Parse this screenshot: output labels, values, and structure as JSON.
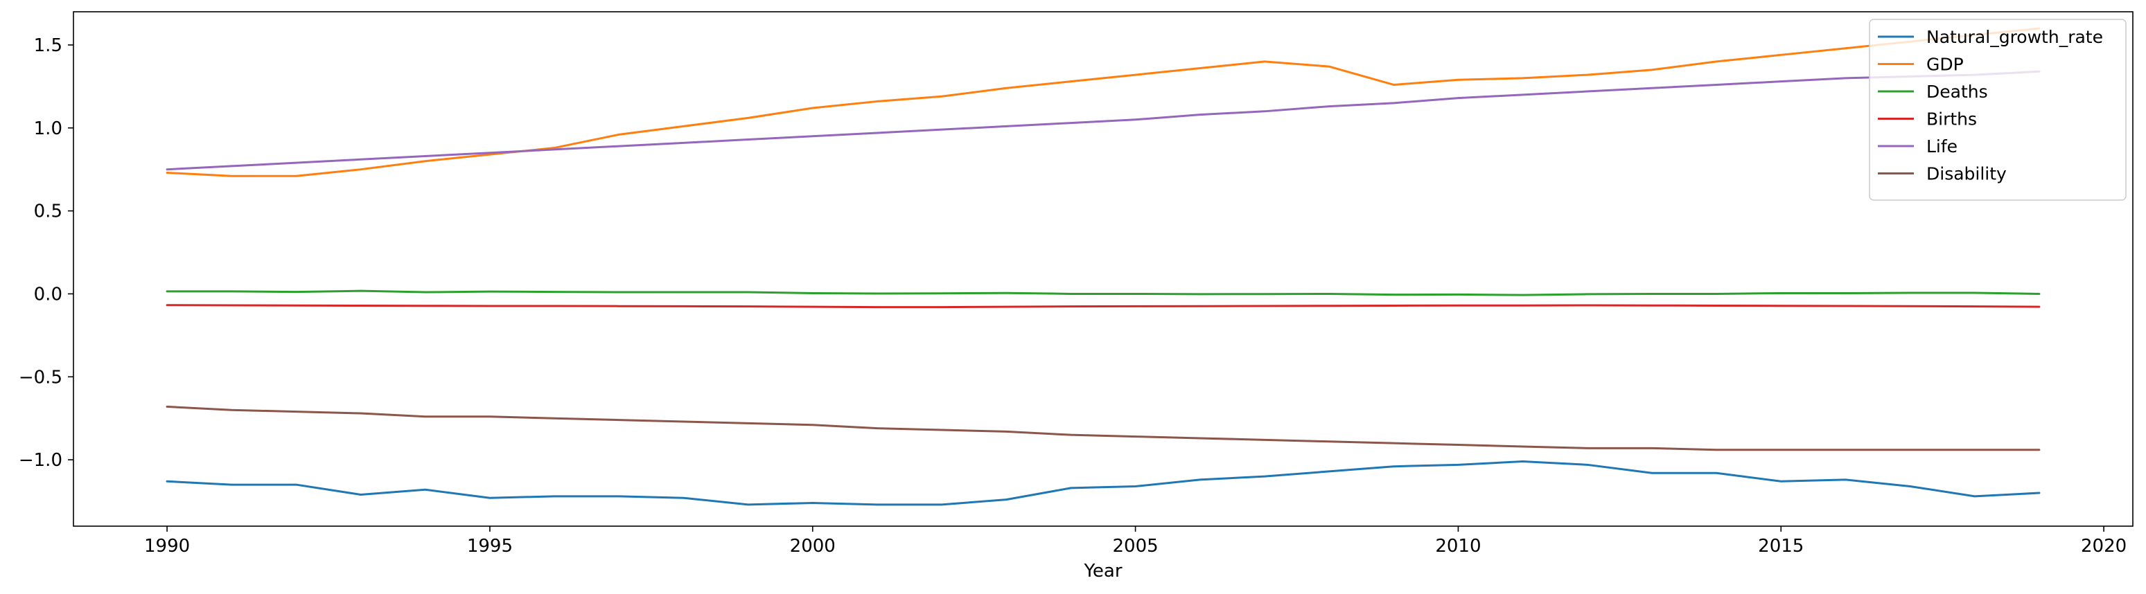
{
  "chart_data": {
    "type": "line",
    "title": "",
    "xlabel": "Year",
    "ylabel": "",
    "xlim": [
      1988.55,
      2020.45
    ],
    "ylim": [
      -1.4,
      1.7
    ],
    "xticks": [
      1990,
      1995,
      2000,
      2005,
      2010,
      2015,
      2020
    ],
    "yticks": [
      -1.0,
      -0.5,
      0.0,
      0.5,
      1.0,
      1.5
    ],
    "grid": false,
    "legend_position": "top-right",
    "x": [
      1990,
      1991,
      1992,
      1993,
      1994,
      1995,
      1996,
      1997,
      1998,
      1999,
      2000,
      2001,
      2002,
      2003,
      2004,
      2005,
      2006,
      2007,
      2008,
      2009,
      2010,
      2011,
      2012,
      2013,
      2014,
      2015,
      2016,
      2017,
      2018,
      2019
    ],
    "series": [
      {
        "name": "Natural_growth_rate",
        "color": "#1f77b4",
        "values": [
          -1.13,
          -1.15,
          -1.15,
          -1.21,
          -1.18,
          -1.23,
          -1.22,
          -1.22,
          -1.23,
          -1.27,
          -1.26,
          -1.27,
          -1.27,
          -1.24,
          -1.17,
          -1.16,
          -1.12,
          -1.1,
          -1.07,
          -1.04,
          -1.03,
          -1.01,
          -1.03,
          -1.08,
          -1.08,
          -1.13,
          -1.12,
          -1.16,
          -1.22,
          -1.2
        ]
      },
      {
        "name": "GDP",
        "color": "#ff7f0e",
        "values": [
          0.73,
          0.71,
          0.71,
          0.75,
          0.8,
          0.84,
          0.88,
          0.96,
          1.01,
          1.06,
          1.12,
          1.16,
          1.19,
          1.24,
          1.28,
          1.32,
          1.36,
          1.4,
          1.37,
          1.26,
          1.29,
          1.3,
          1.32,
          1.35,
          1.4,
          1.44,
          1.48,
          1.52,
          1.56,
          1.6
        ]
      },
      {
        "name": "Deaths",
        "color": "#2ca02c",
        "values": [
          0.015,
          0.015,
          0.012,
          0.018,
          0.01,
          0.014,
          0.012,
          0.01,
          0.01,
          0.01,
          0.004,
          0.002,
          0.003,
          0.005,
          0.0,
          0.0,
          -0.002,
          -0.001,
          0.0,
          -0.005,
          -0.004,
          -0.007,
          -0.002,
          0.0,
          0.0,
          0.004,
          0.004,
          0.006,
          0.006,
          0.0
        ]
      },
      {
        "name": "Births",
        "color": "#d62728",
        "values": [
          -0.068,
          -0.069,
          -0.07,
          -0.071,
          -0.072,
          -0.073,
          -0.073,
          -0.074,
          -0.075,
          -0.076,
          -0.078,
          -0.08,
          -0.08,
          -0.078,
          -0.076,
          -0.075,
          -0.074,
          -0.073,
          -0.072,
          -0.071,
          -0.07,
          -0.07,
          -0.069,
          -0.07,
          -0.071,
          -0.072,
          -0.073,
          -0.074,
          -0.076,
          -0.078
        ]
      },
      {
        "name": "Life",
        "color": "#9467bd",
        "values": [
          0.75,
          0.77,
          0.79,
          0.81,
          0.83,
          0.85,
          0.87,
          0.89,
          0.91,
          0.93,
          0.95,
          0.97,
          0.99,
          1.01,
          1.03,
          1.05,
          1.08,
          1.1,
          1.13,
          1.15,
          1.18,
          1.2,
          1.22,
          1.24,
          1.26,
          1.28,
          1.3,
          1.31,
          1.32,
          1.34
        ]
      },
      {
        "name": "Disability",
        "color": "#8c564b",
        "values": [
          -0.68,
          -0.7,
          -0.71,
          -0.72,
          -0.74,
          -0.74,
          -0.75,
          -0.76,
          -0.77,
          -0.78,
          -0.79,
          -0.81,
          -0.82,
          -0.83,
          -0.85,
          -0.86,
          -0.87,
          -0.88,
          -0.89,
          -0.9,
          -0.91,
          -0.92,
          -0.93,
          -0.93,
          -0.94,
          -0.94,
          -0.94,
          -0.94,
          -0.94,
          -0.94
        ]
      }
    ]
  }
}
